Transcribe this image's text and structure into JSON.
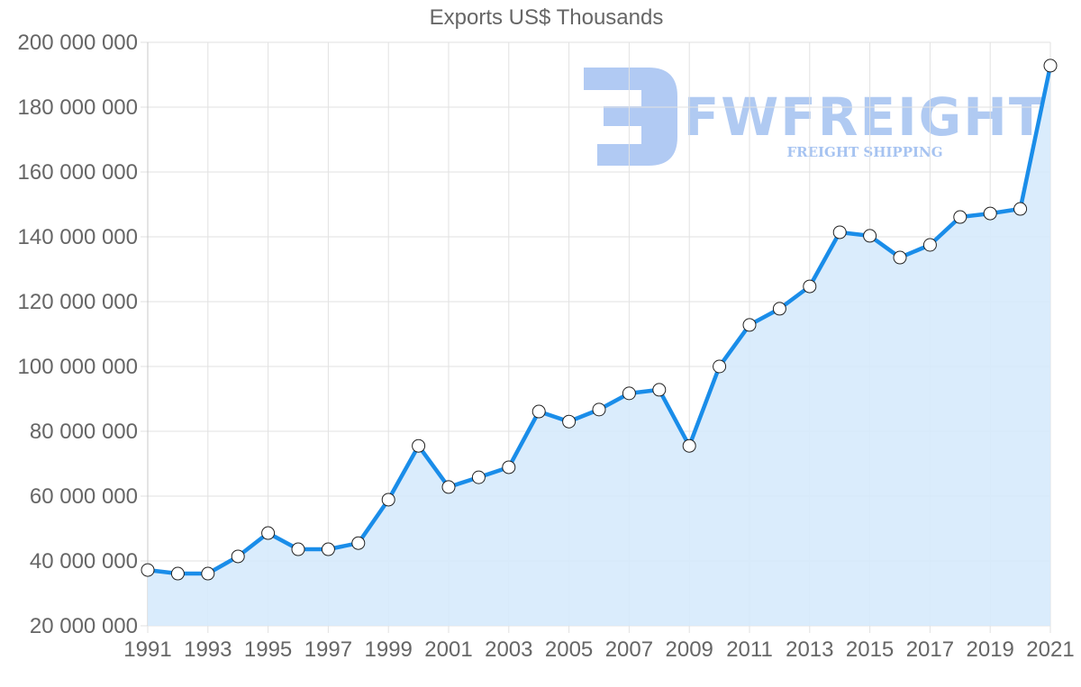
{
  "chart": {
    "title": "Exports US$ Thousands",
    "watermark": {
      "brand": "FWFREIGHT",
      "tagline": "FREIGHT SHIPPING",
      "color": "#9dbdf0"
    },
    "line_color": "#1a8de9",
    "fill_color": "#d6eafc"
  },
  "chart_data": {
    "type": "line",
    "title": "Exports US$ Thousands",
    "xlabel": "",
    "ylabel": "",
    "x": [
      1991,
      1992,
      1993,
      1994,
      1995,
      1996,
      1997,
      1998,
      1999,
      2000,
      2001,
      2002,
      2003,
      2004,
      2005,
      2006,
      2007,
      2008,
      2009,
      2010,
      2011,
      2012,
      2013,
      2014,
      2015,
      2016,
      2017,
      2018,
      2019,
      2020,
      2021
    ],
    "series": [
      {
        "name": "Exports US$ Thousands",
        "values": [
          37200000,
          36100000,
          36100000,
          41400000,
          48600000,
          43600000,
          43600000,
          45500000,
          58900000,
          75500000,
          62800000,
          65800000,
          68900000,
          86100000,
          83000000,
          86700000,
          91700000,
          92800000,
          75500000,
          100000000,
          112800000,
          117800000,
          124700000,
          141400000,
          140300000,
          133600000,
          137500000,
          146100000,
          147200000,
          148600000,
          192800000
        ]
      }
    ],
    "x_tick_labels": [
      "1991",
      "1993",
      "1995",
      "1997",
      "1999",
      "2001",
      "2003",
      "2005",
      "2007",
      "2009",
      "2011",
      "2013",
      "2015",
      "2017",
      "2019",
      "2021"
    ],
    "y_tick_labels": [
      "200 000 000",
      "180 000 000",
      "160 000 000",
      "140 000 000",
      "120 000 000",
      "100 000 000",
      "80 000 000",
      "60 000 000",
      "40 000 000",
      "20 000 000"
    ],
    "ylim": [
      20000000,
      200000000
    ],
    "xlim": [
      1991,
      2021
    ],
    "grid": true,
    "fill_area": true,
    "legend": "none"
  }
}
